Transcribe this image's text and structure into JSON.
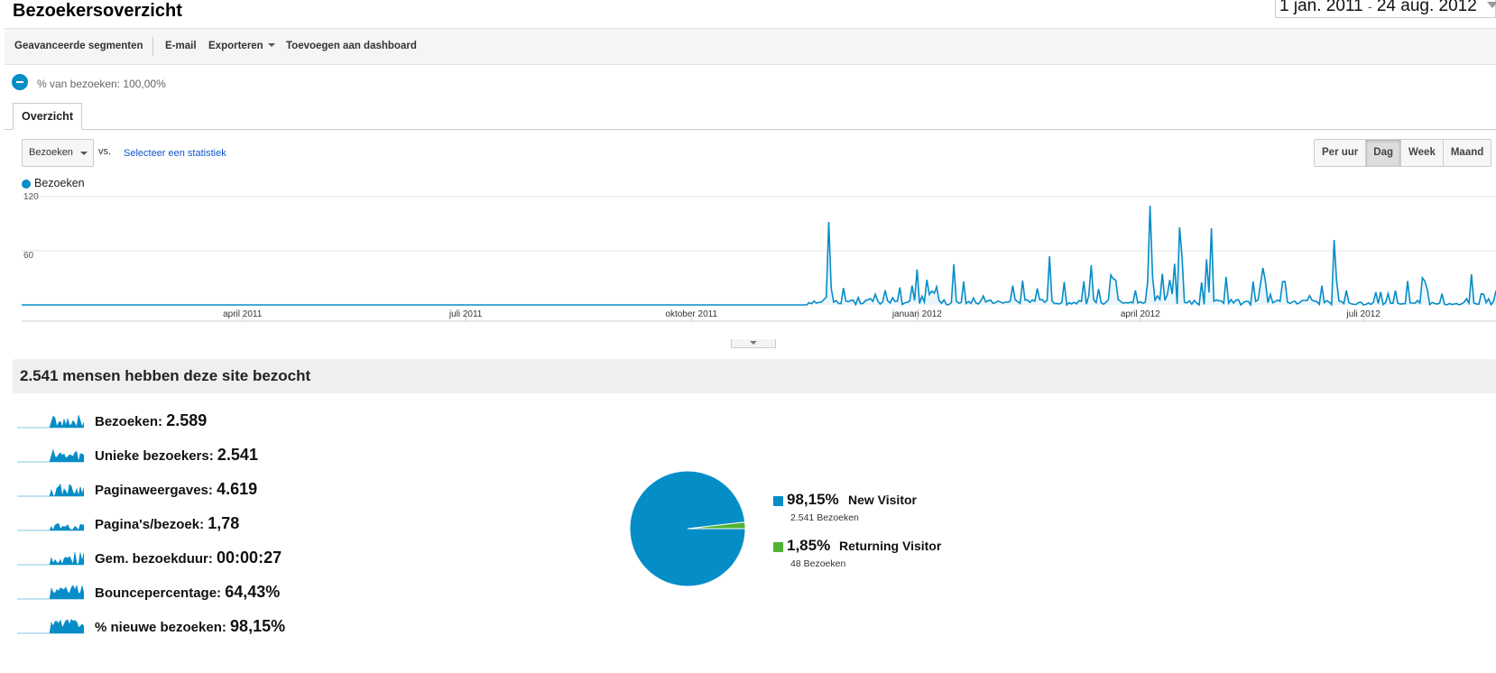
{
  "header": {
    "title": "Bezoekersoverzicht",
    "date_start": "1 jan. 2011",
    "date_sep": "-",
    "date_end": "24 aug. 2012"
  },
  "toolbar": {
    "segments": "Geavanceerde segmenten",
    "email": "E-mail",
    "export": "Exporteren",
    "dashboard": "Toevoegen aan dashboard"
  },
  "segment": {
    "label": "% van bezoeken: 100,00%"
  },
  "tabs": [
    {
      "label": "Overzicht"
    }
  ],
  "metric_select": {
    "primary": "Bezoeken",
    "vs": "vs.",
    "compare": "Selecteer een statistiek"
  },
  "granularity": [
    {
      "label": "Per uur"
    },
    {
      "label": "Dag"
    },
    {
      "label": "Week"
    },
    {
      "label": "Maand"
    }
  ],
  "active_granularity": "Dag",
  "colors": {
    "series": "#058dc7",
    "new_visitor": "#058dc7",
    "returning_visitor": "#50b432"
  },
  "chart_data": [
    {
      "type": "line",
      "series": [
        {
          "name": "Bezoeken"
        }
      ],
      "x": [
        "april 2011",
        "juli 2011",
        "oktober 2011",
        "januari 2012",
        "april 2012",
        "juli 2012"
      ],
      "ylim": [
        0,
        120
      ],
      "yticks": [
        "120",
        "60"
      ],
      "peaks": [
        {
          "date": "2011-11-26",
          "value": 92
        },
        {
          "date": "2012-04-05",
          "value": 110
        },
        {
          "date": "2012-04-17",
          "value": 86
        },
        {
          "date": "2012-04-30",
          "value": 85
        },
        {
          "date": "2012-06-19",
          "value": 72
        }
      ],
      "grid": true
    },
    {
      "type": "pie",
      "slices": [
        {
          "label": "New Visitor",
          "pct": "98,15%",
          "value": 98.15,
          "sub": "2.541 Bezoeken"
        },
        {
          "label": "Returning Visitor",
          "pct": "1,85%",
          "value": 1.85,
          "sub": "48 Bezoeken"
        }
      ]
    }
  ],
  "summary": {
    "title": "2.541 mensen hebben deze site bezocht",
    "metrics": [
      {
        "label": "Bezoeken:",
        "value": "2.589"
      },
      {
        "label": "Unieke bezoekers:",
        "value": "2.541"
      },
      {
        "label": "Paginaweergaves:",
        "value": "4.619"
      },
      {
        "label": "Pagina's/bezoek:",
        "value": "1,78"
      },
      {
        "label": "Gem. bezoekduur:",
        "value": "00:00:27"
      },
      {
        "label": "Bouncepercentage:",
        "value": "64,43%"
      },
      {
        "label": "% nieuwe bezoeken:",
        "value": "98,15%"
      }
    ]
  }
}
